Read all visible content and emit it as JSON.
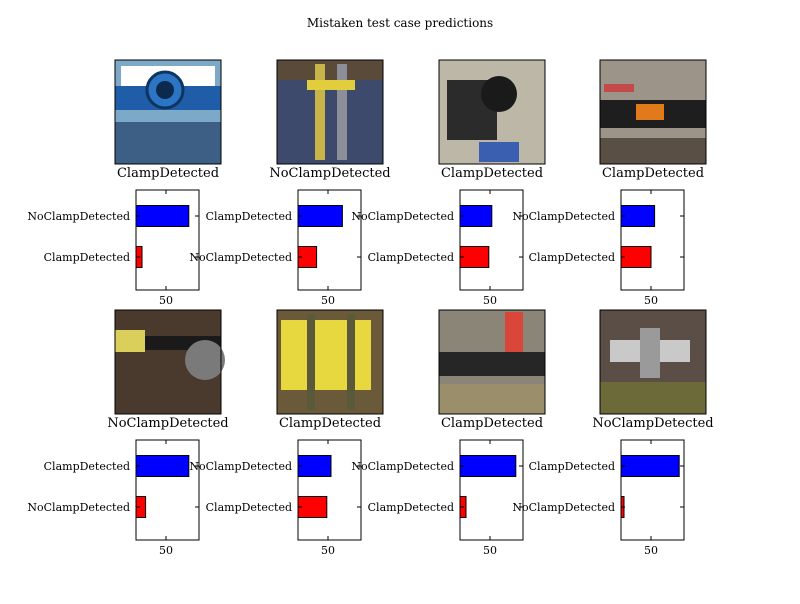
{
  "title": "Mistaken test case predictions",
  "colors": {
    "top_bar": "#0000ff",
    "bottom_bar": "#ff0000",
    "frame": "#000000"
  },
  "chart_data": [
    {
      "type": "bar",
      "orientation": "horizontal",
      "panel_label": "ClampDetected",
      "image_icon": "blue-pipe-clamp-photo",
      "categories": [
        "ClampDetected",
        "NoClampDetected"
      ],
      "values": [
        10,
        88
      ],
      "xticks": [
        50
      ],
      "xlim": [
        0,
        105
      ]
    },
    {
      "type": "bar",
      "orientation": "horizontal",
      "panel_label": "NoClampDetected",
      "image_icon": "yellow-tool-on-tarp-photo",
      "categories": [
        "NoClampDetected",
        "ClampDetected"
      ],
      "values": [
        31,
        74
      ],
      "xticks": [
        50
      ],
      "xlim": [
        0,
        105
      ]
    },
    {
      "type": "bar",
      "orientation": "horizontal",
      "panel_label": "ClampDetected",
      "image_icon": "black-pipe-fitting-photo",
      "categories": [
        "ClampDetected",
        "NoClampDetected"
      ],
      "values": [
        48,
        53
      ],
      "xticks": [
        50
      ],
      "xlim": [
        0,
        105
      ]
    },
    {
      "type": "bar",
      "orientation": "horizontal",
      "panel_label": "ClampDetected",
      "image_icon": "labelled-pipe-clamp-photo",
      "categories": [
        "ClampDetected",
        "NoClampDetected"
      ],
      "values": [
        50,
        56
      ],
      "xticks": [
        50
      ],
      "xlim": [
        0,
        105
      ]
    },
    {
      "type": "bar",
      "orientation": "horizontal",
      "panel_label": "NoClampDetected",
      "image_icon": "pipe-in-soil-photo",
      "categories": [
        "NoClampDetected",
        "ClampDetected"
      ],
      "values": [
        16,
        88
      ],
      "xticks": [
        50
      ],
      "xlim": [
        0,
        105
      ]
    },
    {
      "type": "bar",
      "orientation": "horizontal",
      "panel_label": "ClampDetected",
      "image_icon": "yellow-clamp-photo",
      "categories": [
        "ClampDetected",
        "NoClampDetected"
      ],
      "values": [
        48,
        55
      ],
      "xticks": [
        50
      ],
      "xlim": [
        0,
        105
      ]
    },
    {
      "type": "bar",
      "orientation": "horizontal",
      "panel_label": "ClampDetected",
      "image_icon": "pipe-with-red-tool-photo",
      "categories": [
        "ClampDetected",
        "NoClampDetected"
      ],
      "values": [
        10,
        93
      ],
      "xticks": [
        50
      ],
      "xlim": [
        0,
        105
      ]
    },
    {
      "type": "bar",
      "orientation": "horizontal",
      "panel_label": "NoClampDetected",
      "image_icon": "metal-fittings-photo",
      "categories": [
        "NoClampDetected",
        "ClampDetected"
      ],
      "values": [
        5,
        97
      ],
      "xticks": [
        50
      ],
      "xlim": [
        0,
        105
      ]
    }
  ]
}
